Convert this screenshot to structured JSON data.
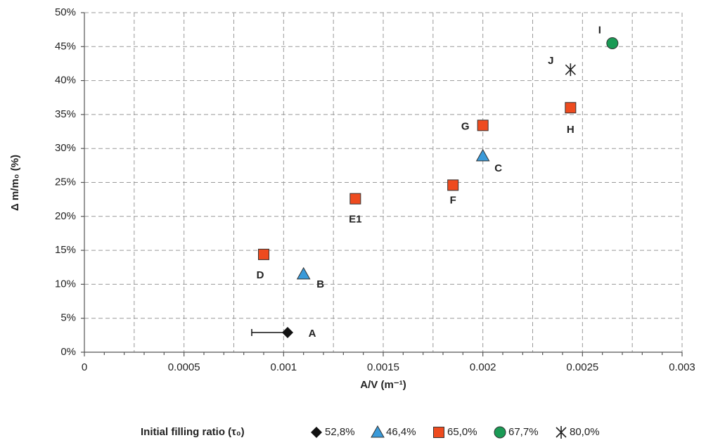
{
  "chart_data": {
    "type": "scatter",
    "x_label": "A/V (m⁻¹)",
    "y_label": "Δ m/m₀ (%)",
    "legend_title": "Initial filling ratio (τ₀)",
    "xlim": [
      0,
      0.003
    ],
    "ylim": [
      0,
      50
    ],
    "xticks": [
      0,
      0.0005,
      0.001,
      0.0015,
      0.002,
      0.0025,
      0.003
    ],
    "yticks": [
      {
        "value": 0,
        "label": "0%"
      },
      {
        "value": 5,
        "label": "5%"
      },
      {
        "value": 10,
        "label": "10%"
      },
      {
        "value": 15,
        "label": "15%"
      },
      {
        "value": 20,
        "label": "20%"
      },
      {
        "value": 25,
        "label": "25%"
      },
      {
        "value": 30,
        "label": "30%"
      },
      {
        "value": 35,
        "label": "35%"
      },
      {
        "value": 40,
        "label": "40%"
      },
      {
        "value": 45,
        "label": "45%"
      },
      {
        "value": 50,
        "label": "50%"
      }
    ],
    "grid": true,
    "legend": "bottom",
    "series": [
      {
        "name": "52,8%",
        "marker": "diamond",
        "color": "#111111",
        "x": [
          0.00102
        ],
        "values": [
          2.9
        ],
        "labels": [
          "A"
        ],
        "xerr_left": [
          0.00018
        ]
      },
      {
        "name": "46,4%",
        "marker": "triangle",
        "color": "#3a9ad9",
        "x": [
          0.0011,
          0.002
        ],
        "values": [
          11.5,
          28.9
        ],
        "labels": [
          "B",
          "C"
        ]
      },
      {
        "name": "65,0%",
        "marker": "square",
        "color": "#ee4b1f",
        "x": [
          0.0009,
          0.00136,
          0.00185,
          0.002,
          0.00244
        ],
        "values": [
          14.4,
          22.6,
          24.6,
          33.4,
          36.0
        ],
        "labels": [
          "D",
          "E1",
          "F",
          "G",
          "H"
        ]
      },
      {
        "name": "67,7%",
        "marker": "circle",
        "color": "#1a9a55",
        "x": [
          0.00265
        ],
        "values": [
          45.5
        ],
        "labels": [
          "I"
        ]
      },
      {
        "name": "80,0%",
        "marker": "asterisk",
        "color": "#222222",
        "x": [
          0.00244
        ],
        "values": [
          41.6
        ],
        "labels": [
          "J"
        ]
      }
    ]
  }
}
